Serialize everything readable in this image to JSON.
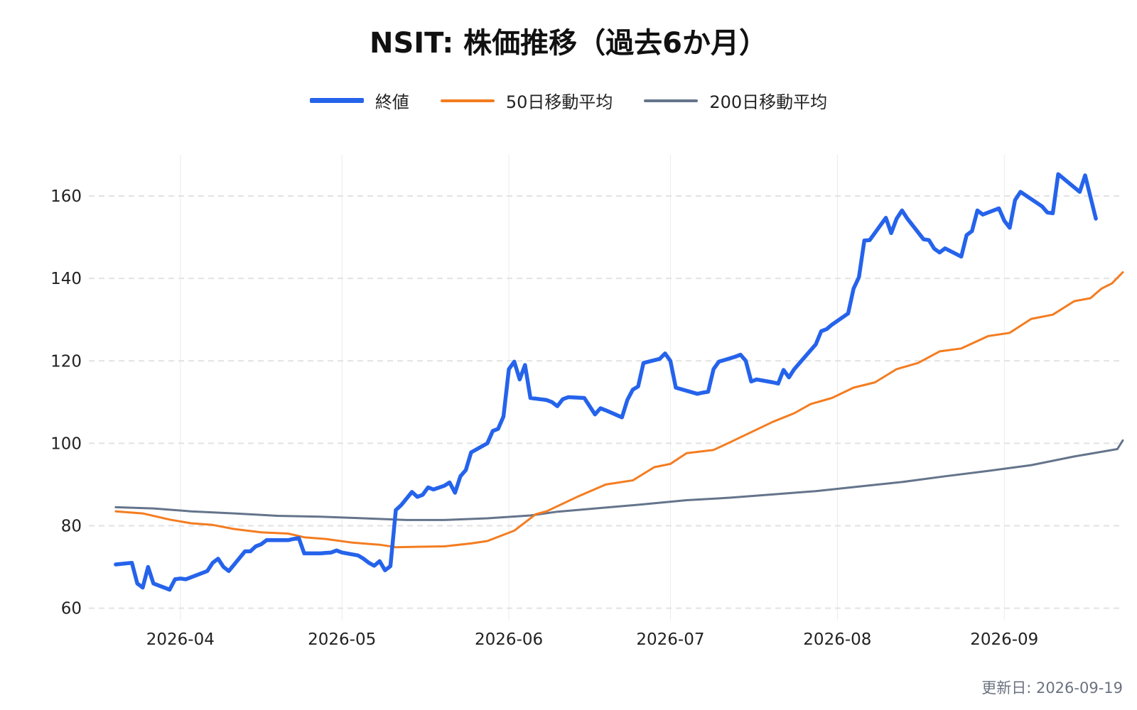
{
  "title": "NSIT: 株価推移（過去6か月）",
  "footer": {
    "updated": "更新日: 2026-09-19"
  },
  "chart_data": {
    "type": "line",
    "title": "NSIT: 株価推移（過去6か月）",
    "xlabel": "",
    "ylabel": "",
    "ylim": [
      57,
      170
    ],
    "xlim": [
      "2026-03-15",
      "2026-09-23"
    ],
    "y_ticks": [
      60,
      80,
      100,
      120,
      140,
      160
    ],
    "x_ticks": [
      "2026-04-01",
      "2026-05-01",
      "2026-06-01",
      "2026-07-01",
      "2026-08-01",
      "2026-09-01"
    ],
    "x_tick_labels": [
      "2026-04",
      "2026-05",
      "2026-06",
      "2026-07",
      "2026-08",
      "2026-09"
    ],
    "grid": true,
    "legend_position": "top-center",
    "series": [
      {
        "name": "終値",
        "color": "#2563eb",
        "points": [
          [
            "2026-03-20",
            70.6
          ],
          [
            "2026-03-23",
            71.0
          ],
          [
            "2026-03-24",
            66.0
          ],
          [
            "2026-03-25",
            65.0
          ],
          [
            "2026-03-26",
            70.0
          ],
          [
            "2026-03-27",
            66.0
          ],
          [
            "2026-03-30",
            64.5
          ],
          [
            "2026-03-31",
            67.0
          ],
          [
            "2026-04-01",
            67.2
          ],
          [
            "2026-04-02",
            67.0
          ],
          [
            "2026-04-06",
            69.0
          ],
          [
            "2026-04-07",
            71.0
          ],
          [
            "2026-04-08",
            72.0
          ],
          [
            "2026-04-09",
            70.0
          ],
          [
            "2026-04-10",
            69.0
          ],
          [
            "2026-04-13",
            73.8
          ],
          [
            "2026-04-14",
            73.8
          ],
          [
            "2026-04-15",
            75.0
          ],
          [
            "2026-04-16",
            75.5
          ],
          [
            "2026-04-17",
            76.5
          ],
          [
            "2026-04-20",
            76.5
          ],
          [
            "2026-04-21",
            76.5
          ],
          [
            "2026-04-22",
            76.8
          ],
          [
            "2026-04-23",
            77.0
          ],
          [
            "2026-04-24",
            73.3
          ],
          [
            "2026-04-27",
            73.3
          ],
          [
            "2026-04-28",
            73.4
          ],
          [
            "2026-04-29",
            73.5
          ],
          [
            "2026-04-30",
            74.0
          ],
          [
            "2026-05-01",
            73.5
          ],
          [
            "2026-05-04",
            72.8
          ],
          [
            "2026-05-05",
            72.0
          ],
          [
            "2026-05-06",
            71.0
          ],
          [
            "2026-05-07",
            70.3
          ],
          [
            "2026-05-08",
            71.4
          ],
          [
            "2026-05-09",
            69.2
          ],
          [
            "2026-05-10",
            70.2
          ],
          [
            "2026-05-11",
            83.8
          ],
          [
            "2026-05-12",
            85.0
          ],
          [
            "2026-05-14",
            88.2
          ],
          [
            "2026-05-15",
            87.0
          ],
          [
            "2026-05-16",
            87.5
          ],
          [
            "2026-05-17",
            89.3
          ],
          [
            "2026-05-18",
            88.8
          ],
          [
            "2026-05-20",
            89.7
          ],
          [
            "2026-05-21",
            90.5
          ],
          [
            "2026-05-22",
            88.0
          ],
          [
            "2026-05-23",
            92.0
          ],
          [
            "2026-05-24",
            93.5
          ],
          [
            "2026-05-25",
            97.8
          ],
          [
            "2026-05-28",
            100.0
          ],
          [
            "2026-05-29",
            103.0
          ],
          [
            "2026-05-30",
            103.5
          ],
          [
            "2026-05-31",
            106.5
          ],
          [
            "2026-06-01",
            118.0
          ],
          [
            "2026-06-02",
            119.8
          ],
          [
            "2026-06-03",
            115.5
          ],
          [
            "2026-06-04",
            119.0
          ],
          [
            "2026-06-05",
            111.0
          ],
          [
            "2026-06-08",
            110.5
          ],
          [
            "2026-06-09",
            110.0
          ],
          [
            "2026-06-10",
            109.0
          ],
          [
            "2026-06-11",
            110.7
          ],
          [
            "2026-06-12",
            111.2
          ],
          [
            "2026-06-15",
            111.0
          ],
          [
            "2026-06-16",
            109.0
          ],
          [
            "2026-06-17",
            107.0
          ],
          [
            "2026-06-18",
            108.5
          ],
          [
            "2026-06-19",
            108.0
          ],
          [
            "2026-06-22",
            106.3
          ],
          [
            "2026-06-23",
            110.5
          ],
          [
            "2026-06-24",
            113.0
          ],
          [
            "2026-06-25",
            113.8
          ],
          [
            "2026-06-26",
            119.5
          ],
          [
            "2026-06-29",
            120.5
          ],
          [
            "2026-06-30",
            121.8
          ],
          [
            "2026-07-01",
            120.0
          ],
          [
            "2026-07-02",
            113.5
          ],
          [
            "2026-07-06",
            112.0
          ],
          [
            "2026-07-07",
            112.3
          ],
          [
            "2026-07-08",
            112.5
          ],
          [
            "2026-07-09",
            118.0
          ],
          [
            "2026-07-10",
            119.8
          ],
          [
            "2026-07-13",
            121.0
          ],
          [
            "2026-07-14",
            121.5
          ],
          [
            "2026-07-15",
            120.0
          ],
          [
            "2026-07-16",
            115.0
          ],
          [
            "2026-07-17",
            115.5
          ],
          [
            "2026-07-20",
            114.8
          ],
          [
            "2026-07-21",
            114.5
          ],
          [
            "2026-07-22",
            117.8
          ],
          [
            "2026-07-23",
            116.0
          ],
          [
            "2026-07-24",
            118.0
          ],
          [
            "2026-07-28",
            124.0
          ],
          [
            "2026-07-29",
            127.2
          ],
          [
            "2026-07-30",
            127.7
          ],
          [
            "2026-07-31",
            128.8
          ],
          [
            "2026-08-03",
            131.5
          ],
          [
            "2026-08-04",
            137.5
          ],
          [
            "2026-08-05",
            140.3
          ],
          [
            "2026-08-06",
            149.2
          ],
          [
            "2026-08-07",
            149.3
          ],
          [
            "2026-08-10",
            154.7
          ],
          [
            "2026-08-11",
            151.0
          ],
          [
            "2026-08-12",
            154.5
          ],
          [
            "2026-08-13",
            156.5
          ],
          [
            "2026-08-14",
            154.5
          ],
          [
            "2026-08-17",
            149.5
          ],
          [
            "2026-08-18",
            149.3
          ],
          [
            "2026-08-19",
            147.2
          ],
          [
            "2026-08-20",
            146.3
          ],
          [
            "2026-08-21",
            147.3
          ],
          [
            "2026-08-24",
            145.3
          ],
          [
            "2026-08-25",
            150.5
          ],
          [
            "2026-08-26",
            151.5
          ],
          [
            "2026-08-27",
            156.5
          ],
          [
            "2026-08-28",
            155.5
          ],
          [
            "2026-08-31",
            157.0
          ],
          [
            "2026-09-01",
            154.0
          ],
          [
            "2026-09-02",
            152.3
          ],
          [
            "2026-09-03",
            159.0
          ],
          [
            "2026-09-04",
            161.0
          ],
          [
            "2026-09-08",
            157.5
          ],
          [
            "2026-09-09",
            156.0
          ],
          [
            "2026-09-10",
            155.8
          ],
          [
            "2026-09-11",
            165.3
          ],
          [
            "2026-09-15",
            161.0
          ],
          [
            "2026-09-16",
            165.0
          ],
          [
            "2026-09-18",
            154.5
          ]
        ]
      },
      {
        "name": "50日移動平均",
        "color": "#f47c20",
        "points": [
          [
            "2026-03-20",
            83.5
          ],
          [
            "2026-03-25",
            83.0
          ],
          [
            "2026-03-30",
            81.5
          ],
          [
            "2026-04-03",
            80.6
          ],
          [
            "2026-04-07",
            80.2
          ],
          [
            "2026-04-11",
            79.2
          ],
          [
            "2026-04-16",
            78.4
          ],
          [
            "2026-04-21",
            78.1
          ],
          [
            "2026-04-24",
            77.2
          ],
          [
            "2026-04-28",
            76.8
          ],
          [
            "2026-05-03",
            75.9
          ],
          [
            "2026-05-08",
            75.4
          ],
          [
            "2026-05-11",
            74.8
          ],
          [
            "2026-05-15",
            74.9
          ],
          [
            "2026-05-20",
            75.0
          ],
          [
            "2026-05-25",
            75.7
          ],
          [
            "2026-05-28",
            76.3
          ],
          [
            "2026-06-02",
            78.8
          ],
          [
            "2026-06-06",
            82.8
          ],
          [
            "2026-06-08",
            83.5
          ],
          [
            "2026-06-14",
            87.2
          ],
          [
            "2026-06-19",
            90.0
          ],
          [
            "2026-06-24",
            91.0
          ],
          [
            "2026-06-28",
            94.2
          ],
          [
            "2026-07-01",
            95.0
          ],
          [
            "2026-07-04",
            97.6
          ],
          [
            "2026-07-09",
            98.4
          ],
          [
            "2026-07-12",
            100.2
          ],
          [
            "2026-07-16",
            102.7
          ],
          [
            "2026-07-20",
            105.2
          ],
          [
            "2026-07-24",
            107.3
          ],
          [
            "2026-07-27",
            109.5
          ],
          [
            "2026-07-31",
            111.0
          ],
          [
            "2026-08-04",
            113.5
          ],
          [
            "2026-08-08",
            114.8
          ],
          [
            "2026-08-12",
            118.0
          ],
          [
            "2026-08-16",
            119.5
          ],
          [
            "2026-08-20",
            122.3
          ],
          [
            "2026-08-24",
            123.0
          ],
          [
            "2026-08-29",
            126.0
          ],
          [
            "2026-09-02",
            126.8
          ],
          [
            "2026-09-06",
            130.2
          ],
          [
            "2026-09-10",
            131.2
          ],
          [
            "2026-09-14",
            134.5
          ],
          [
            "2026-09-17",
            135.2
          ],
          [
            "2026-09-19",
            137.5
          ],
          [
            "2026-09-21",
            138.8
          ],
          [
            "2026-09-23",
            141.5
          ]
        ]
      },
      {
        "name": "200日移動平均",
        "color": "#64748b",
        "points": [
          [
            "2026-03-20",
            84.5
          ],
          [
            "2026-03-27",
            84.2
          ],
          [
            "2026-04-03",
            83.5
          ],
          [
            "2026-04-11",
            83.0
          ],
          [
            "2026-04-19",
            82.4
          ],
          [
            "2026-04-27",
            82.2
          ],
          [
            "2026-05-05",
            81.8
          ],
          [
            "2026-05-13",
            81.4
          ],
          [
            "2026-05-20",
            81.4
          ],
          [
            "2026-05-28",
            81.8
          ],
          [
            "2026-06-05",
            82.5
          ],
          [
            "2026-06-10",
            83.4
          ],
          [
            "2026-06-18",
            84.3
          ],
          [
            "2026-06-26",
            85.2
          ],
          [
            "2026-07-04",
            86.2
          ],
          [
            "2026-07-12",
            86.8
          ],
          [
            "2026-07-20",
            87.6
          ],
          [
            "2026-07-28",
            88.4
          ],
          [
            "2026-08-05",
            89.5
          ],
          [
            "2026-08-13",
            90.6
          ],
          [
            "2026-08-21",
            92.0
          ],
          [
            "2026-08-29",
            93.3
          ],
          [
            "2026-09-06",
            94.7
          ],
          [
            "2026-09-14",
            96.8
          ],
          [
            "2026-09-22",
            98.6
          ],
          [
            "2026-09-23",
            100.7
          ]
        ]
      }
    ]
  }
}
